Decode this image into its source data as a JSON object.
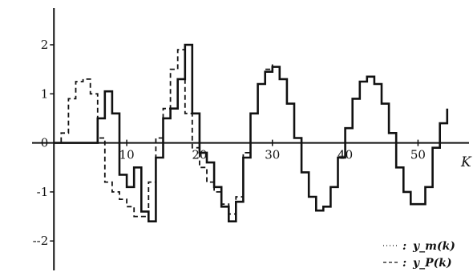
{
  "chart_data": {
    "type": "line",
    "title": "",
    "xlabel": "K",
    "ylabel": "",
    "xlim": [
      -3,
      57
    ],
    "ylim": [
      -2.6,
      2.75
    ],
    "x_ticks": [
      10,
      20,
      30,
      40,
      50
    ],
    "x_tick_labels": [
      "10",
      "20",
      "30",
      "40",
      "50"
    ],
    "y_ticks": [
      2,
      1,
      0,
      -1,
      -2
    ],
    "y_tick_labels": [
      "2",
      "1",
      "0",
      "-1",
      "--2"
    ],
    "zero_label": "0",
    "grid": false,
    "legend_position": "bottom-right",
    "colors": {
      "axis": "#111111",
      "line": "#111111"
    },
    "series": [
      {
        "name": "y_m(k)",
        "style": "solid",
        "x": [
          0,
          1,
          2,
          3,
          4,
          5,
          6,
          7,
          8,
          9,
          10,
          11,
          12,
          13,
          14,
          15,
          16,
          17,
          18,
          19,
          20,
          21,
          22,
          23,
          24,
          25,
          26,
          27,
          28,
          29,
          30,
          31,
          32,
          33,
          34,
          35,
          36,
          37,
          38,
          39,
          40,
          41,
          42,
          43,
          44,
          45,
          46,
          47,
          48,
          49,
          50,
          51,
          52,
          53,
          54
        ],
        "values": [
          0,
          0,
          0,
          0,
          0,
          0,
          0.5,
          1.05,
          0.6,
          -0.65,
          -0.9,
          -0.5,
          -1.4,
          -1.6,
          -0.3,
          0.5,
          0.7,
          1.3,
          2.0,
          0.6,
          -0.2,
          -0.4,
          -0.9,
          -1.3,
          -1.6,
          -1.2,
          -0.3,
          0.6,
          1.2,
          1.45,
          1.55,
          1.3,
          0.8,
          0.1,
          -0.6,
          -1.1,
          -1.38,
          -1.3,
          -0.9,
          -0.3,
          0.3,
          0.9,
          1.25,
          1.35,
          1.2,
          0.8,
          0.2,
          -0.5,
          -1.0,
          -1.25,
          -1.25,
          -0.9,
          -0.1,
          0.4,
          0.7
        ]
      },
      {
        "name": "y_P(k)",
        "style": "dashed",
        "x": [
          0,
          1,
          2,
          3,
          4,
          5,
          6,
          7,
          8,
          9,
          10,
          11,
          12,
          13,
          14,
          15,
          16,
          17,
          18,
          19,
          20,
          21,
          22,
          23,
          24,
          25,
          26,
          27,
          28,
          29,
          30
        ],
        "values": [
          0,
          0.2,
          0.9,
          1.25,
          1.3,
          1.0,
          0.1,
          -0.8,
          -1.0,
          -1.15,
          -1.3,
          -1.5,
          -1.5,
          -0.8,
          0.1,
          0.7,
          1.5,
          1.9,
          0.6,
          -0.1,
          -0.5,
          -0.8,
          -1.0,
          -1.25,
          -1.45,
          -1.1,
          -0.2,
          0.6,
          1.2,
          1.5,
          1.6
        ]
      }
    ],
    "legend": [
      {
        "marker": ":",
        "label": "y_m(k)"
      },
      {
        "marker": ":",
        "label": "y_P(k)"
      }
    ]
  }
}
